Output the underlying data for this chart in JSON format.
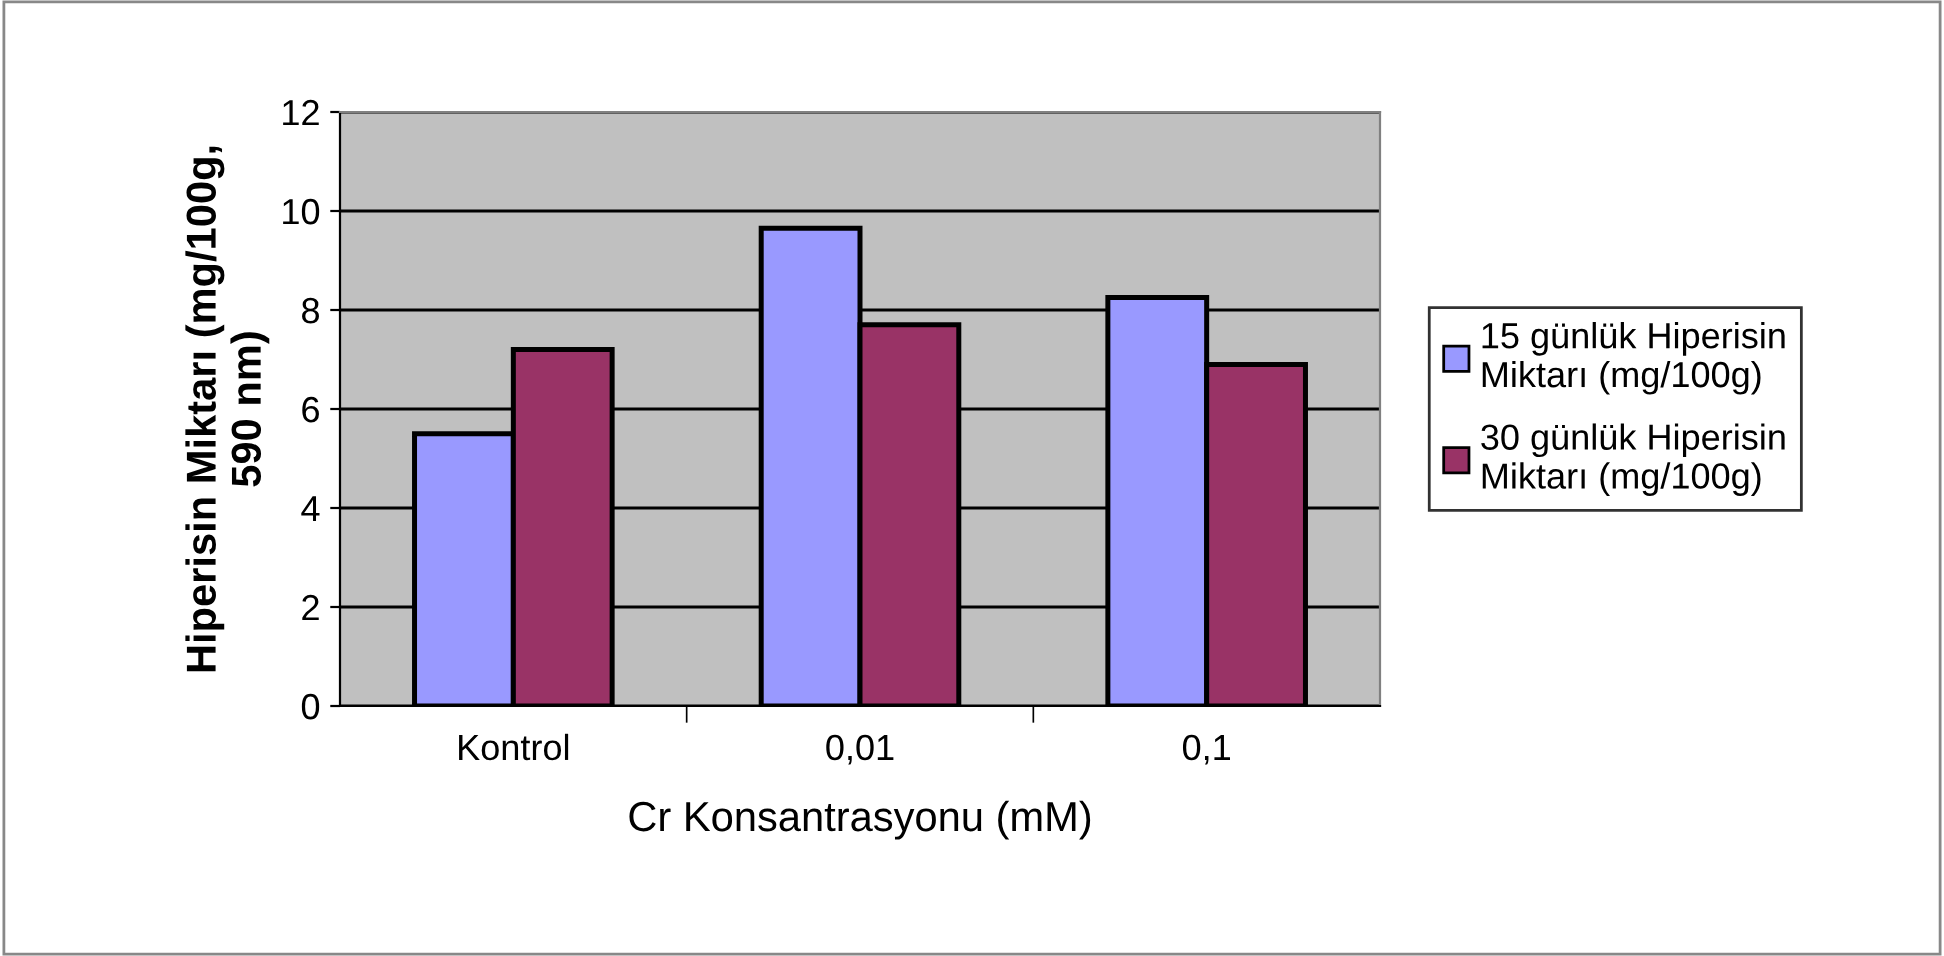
{
  "chart_data": {
    "type": "bar",
    "xlabel": "Cr Konsantrasyonu (mM)",
    "ylabel": "Hiperisin Miktarı (mg/100g,\n590 nm)",
    "categories": [
      "Kontrol",
      "0,01",
      "0,1"
    ],
    "series": [
      {
        "name": "15 günlük Hiperisin\nMiktarı (mg/100g)",
        "color": "#9999ff",
        "values": [
          5.5,
          9.65,
          8.25
        ]
      },
      {
        "name": "30 günlük Hiperisin\nMiktarı (mg/100g)",
        "color": "#993366",
        "values": [
          7.2,
          7.7,
          6.9
        ]
      }
    ],
    "ylim": [
      0,
      12
    ],
    "yticks": [
      0,
      2,
      4,
      6,
      8,
      10,
      12
    ],
    "grid": "y",
    "legend": "right"
  }
}
